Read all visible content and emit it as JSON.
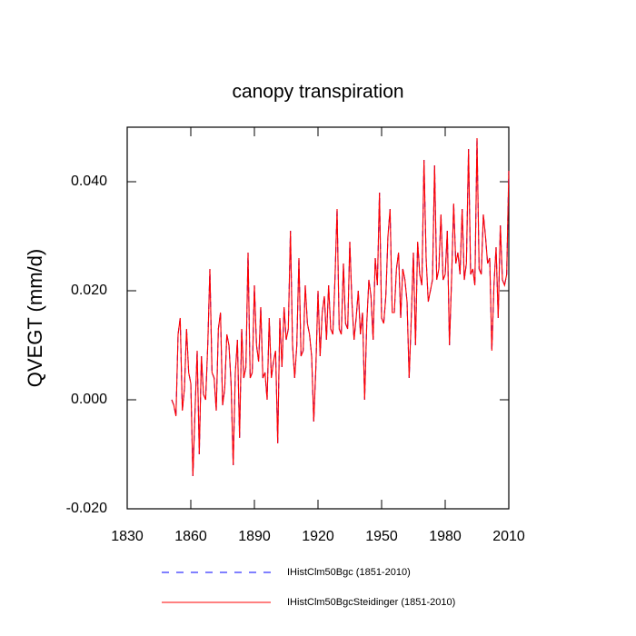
{
  "chart_data": {
    "type": "line",
    "title": "canopy transpiration",
    "ylabel": "QVEGT  (mm/d)",
    "x": [
      1851,
      1852,
      1853,
      1854,
      1855,
      1856,
      1857,
      1858,
      1859,
      1860,
      1861,
      1862,
      1863,
      1864,
      1865,
      1866,
      1867,
      1868,
      1869,
      1870,
      1871,
      1872,
      1873,
      1874,
      1875,
      1876,
      1877,
      1878,
      1879,
      1880,
      1881,
      1882,
      1883,
      1884,
      1885,
      1886,
      1887,
      1888,
      1889,
      1890,
      1891,
      1892,
      1893,
      1894,
      1895,
      1896,
      1897,
      1898,
      1899,
      1900,
      1901,
      1902,
      1903,
      1904,
      1905,
      1906,
      1907,
      1908,
      1909,
      1910,
      1911,
      1912,
      1913,
      1914,
      1915,
      1916,
      1917,
      1918,
      1919,
      1920,
      1921,
      1922,
      1923,
      1924,
      1925,
      1926,
      1927,
      1928,
      1929,
      1930,
      1931,
      1932,
      1933,
      1934,
      1935,
      1936,
      1937,
      1938,
      1939,
      1940,
      1941,
      1942,
      1943,
      1944,
      1945,
      1946,
      1947,
      1948,
      1949,
      1950,
      1951,
      1952,
      1953,
      1954,
      1955,
      1956,
      1957,
      1958,
      1959,
      1960,
      1961,
      1962,
      1963,
      1964,
      1965,
      1966,
      1967,
      1968,
      1969,
      1970,
      1971,
      1972,
      1973,
      1974,
      1975,
      1976,
      1977,
      1978,
      1979,
      1980,
      1981,
      1982,
      1983,
      1984,
      1985,
      1986,
      1987,
      1988,
      1989,
      1990,
      1991,
      1992,
      1993,
      1994,
      1995,
      1996,
      1997,
      1998,
      1999,
      2000,
      2001,
      2002,
      2003,
      2004,
      2005,
      2006,
      2007,
      2008,
      2009,
      2010
    ],
    "series": [
      {
        "name": "IHistClm50Bgc (1851-2010)",
        "color": "#0000ff",
        "dash": "dashed",
        "values": [
          0,
          -0.001,
          -0.003,
          0.012,
          0.015,
          -0.002,
          0.002,
          0.013,
          0.005,
          0.003,
          -0.014,
          -0.002,
          0.009,
          -0.01,
          0.008,
          0.001,
          0.0,
          0.01,
          0.024,
          0.005,
          0.004,
          -0.002,
          0.013,
          0.016,
          -0.001,
          0.002,
          0.012,
          0.01,
          0.003,
          -0.012,
          0.005,
          0.011,
          -0.007,
          0.013,
          0.004,
          0.006,
          0.027,
          0.004,
          0.005,
          0.021,
          0.01,
          0.007,
          0.017,
          0.004,
          0.005,
          0.0,
          0.015,
          0.004,
          0.007,
          0.009,
          -0.008,
          0.015,
          0.006,
          0.017,
          0.011,
          0.013,
          0.031,
          0.01,
          0.004,
          0.01,
          0.026,
          0.008,
          0.009,
          0.021,
          0.014,
          0.012,
          0.008,
          -0.004,
          0.006,
          0.02,
          0.008,
          0.016,
          0.019,
          0.011,
          0.021,
          0.013,
          0.012,
          0.022,
          0.035,
          0.013,
          0.012,
          0.025,
          0.014,
          0.013,
          0.029,
          0.018,
          0.011,
          0.015,
          0.02,
          0.012,
          0.016,
          0.0,
          0.014,
          0.022,
          0.019,
          0.011,
          0.026,
          0.021,
          0.038,
          0.015,
          0.014,
          0.019,
          0.03,
          0.035,
          0.016,
          0.016,
          0.024,
          0.027,
          0.015,
          0.024,
          0.022,
          0.018,
          0.004,
          0.015,
          0.027,
          0.01,
          0.029,
          0.023,
          0.021,
          0.044,
          0.026,
          0.018,
          0.02,
          0.022,
          0.043,
          0.022,
          0.024,
          0.034,
          0.022,
          0.023,
          0.031,
          0.01,
          0.022,
          0.036,
          0.025,
          0.027,
          0.023,
          0.035,
          0.022,
          0.025,
          0.046,
          0.023,
          0.024,
          0.021,
          0.048,
          0.024,
          0.023,
          0.034,
          0.03,
          0.025,
          0.026,
          0.009,
          0.021,
          0.028,
          0.015,
          0.032,
          0.022,
          0.021,
          0.023,
          0.042
        ]
      },
      {
        "name": "IHistClm50BgcSteidinger (1851-2010)",
        "color": "#ff0000",
        "dash": "solid",
        "values": [
          0,
          -0.001,
          -0.003,
          0.012,
          0.015,
          -0.002,
          0.002,
          0.013,
          0.005,
          0.003,
          -0.014,
          -0.002,
          0.009,
          -0.01,
          0.008,
          0.001,
          0.0,
          0.01,
          0.024,
          0.005,
          0.004,
          -0.002,
          0.013,
          0.016,
          -0.001,
          0.002,
          0.012,
          0.01,
          0.003,
          -0.012,
          0.005,
          0.011,
          -0.007,
          0.013,
          0.004,
          0.006,
          0.027,
          0.004,
          0.005,
          0.021,
          0.01,
          0.007,
          0.017,
          0.004,
          0.005,
          0.0,
          0.015,
          0.004,
          0.007,
          0.009,
          -0.008,
          0.015,
          0.006,
          0.017,
          0.011,
          0.013,
          0.031,
          0.01,
          0.004,
          0.01,
          0.026,
          0.008,
          0.009,
          0.021,
          0.014,
          0.012,
          0.008,
          -0.004,
          0.006,
          0.02,
          0.008,
          0.016,
          0.019,
          0.011,
          0.021,
          0.013,
          0.012,
          0.022,
          0.035,
          0.013,
          0.012,
          0.025,
          0.014,
          0.013,
          0.029,
          0.018,
          0.011,
          0.015,
          0.02,
          0.012,
          0.016,
          0.0,
          0.014,
          0.022,
          0.019,
          0.011,
          0.026,
          0.021,
          0.038,
          0.015,
          0.014,
          0.019,
          0.03,
          0.035,
          0.016,
          0.016,
          0.024,
          0.027,
          0.015,
          0.024,
          0.022,
          0.018,
          0.004,
          0.015,
          0.027,
          0.01,
          0.029,
          0.023,
          0.021,
          0.044,
          0.026,
          0.018,
          0.02,
          0.022,
          0.043,
          0.022,
          0.024,
          0.034,
          0.022,
          0.023,
          0.031,
          0.01,
          0.022,
          0.036,
          0.025,
          0.027,
          0.023,
          0.035,
          0.022,
          0.025,
          0.046,
          0.023,
          0.024,
          0.021,
          0.048,
          0.024,
          0.023,
          0.034,
          0.03,
          0.025,
          0.026,
          0.009,
          0.021,
          0.028,
          0.015,
          0.032,
          0.022,
          0.021,
          0.023,
          0.042
        ]
      }
    ],
    "xlim": [
      1830,
      2010
    ],
    "xticks": [
      1830,
      1860,
      1890,
      1920,
      1950,
      1980,
      2010
    ],
    "ylim": [
      -0.02,
      0.05
    ],
    "yticks": [
      {
        "value": -0.02,
        "label": "-0.020"
      },
      {
        "value": 0,
        "label": "0.000"
      },
      {
        "value": 0.02,
        "label": "0.020"
      },
      {
        "value": 0.04,
        "label": "0.040"
      }
    ],
    "grid": false
  }
}
